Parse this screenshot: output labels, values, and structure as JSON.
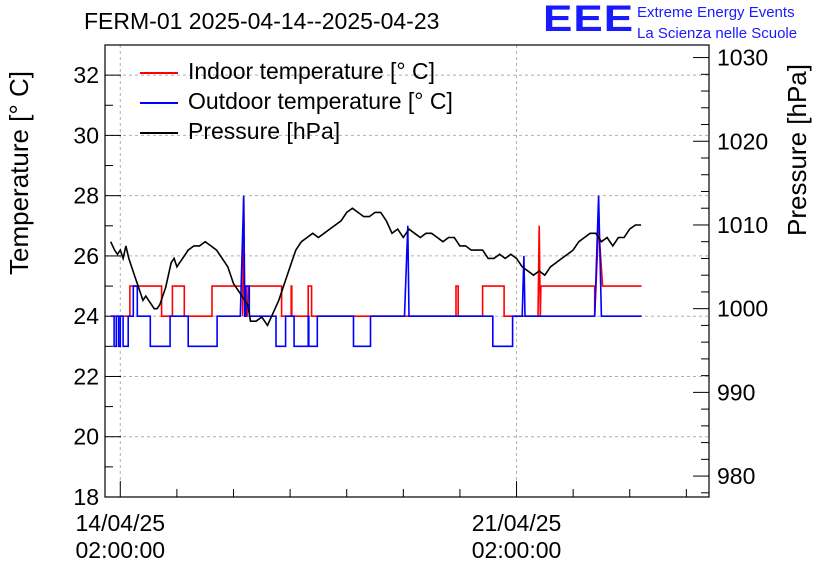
{
  "title": "FERM-01 2025-04-14--2025-04-23",
  "logo_text": "EEE",
  "org_line1": "Extreme Energy Events",
  "org_line2": "La Scienza nelle Scuole",
  "colors": {
    "indoor": "#ff0000",
    "outdoor": "#0000ff",
    "pressure": "#000000",
    "brand": "#1a1aff",
    "grid": "#b0b0b0"
  },
  "chart_data": {
    "type": "line",
    "ylabel": "Temperature [° C]",
    "ylabel_right": "Pressure [hPa]",
    "ylim": [
      18,
      33
    ],
    "ylim_right": [
      977.5,
      1031.5
    ],
    "xlim": [
      -0.27,
      10.4
    ],
    "yticks_left": [
      18,
      20,
      22,
      24,
      26,
      28,
      30,
      32
    ],
    "yticks_right": [
      980,
      990,
      1000,
      1010,
      1020,
      1030
    ],
    "xticks": [
      {
        "x": 0,
        "label1": "14/04/25",
        "label2": "02:00:00"
      },
      {
        "x": 7,
        "label1": "21/04/25",
        "label2": "02:00:00"
      }
    ],
    "grid": true,
    "legend_position": "top-left",
    "series": [
      {
        "name": "Indoor temperature [° C]",
        "axis": "left",
        "x": [
          -0.17,
          0.17,
          0.17,
          0.73,
          0.73,
          0.92,
          0.92,
          1.13,
          1.13,
          1.62,
          1.62,
          2.16,
          2.16,
          2.18,
          2.2,
          2.22,
          2.24,
          2.26,
          2.26,
          2.56,
          2.56,
          2.85,
          2.85,
          3.02,
          3.02,
          3.03,
          3.03,
          3.32,
          3.32,
          3.38,
          3.38,
          5.93,
          5.93,
          5.97,
          5.97,
          6.4,
          6.4,
          6.78,
          6.78,
          6.85,
          6.85,
          7.4,
          7.4,
          7.08,
          7.08,
          7.38,
          7.4,
          7.42,
          7.43,
          8.38,
          8.38,
          8.45,
          8.52,
          9.21
        ],
        "y": [
          24,
          24,
          25,
          25,
          24,
          24,
          25,
          25,
          24,
          24,
          25,
          25,
          24,
          28,
          24,
          24,
          24,
          25,
          25,
          25,
          25,
          25,
          24,
          24,
          25,
          25,
          24,
          24,
          25,
          25,
          24,
          24,
          25,
          25,
          24,
          24,
          25,
          25,
          24,
          24,
          24,
          24,
          24,
          24,
          24,
          24,
          27,
          24,
          25,
          25,
          24,
          27,
          25,
          25
        ]
      },
      {
        "name": "Outdoor temperature [° C]",
        "axis": "left",
        "x": [
          -0.17,
          -0.11,
          -0.11,
          -0.07,
          -0.07,
          -0.03,
          -0.03,
          0.0,
          0.0,
          0.05,
          0.05,
          0.14,
          0.14,
          0.23,
          0.23,
          0.3,
          0.3,
          0.53,
          0.53,
          0.88,
          0.88,
          0.98,
          0.98,
          1.0,
          1.0,
          1.2,
          1.2,
          1.71,
          1.71,
          2.12,
          2.12,
          2.18,
          2.2,
          2.22,
          2.22,
          2.28,
          2.28,
          2.52,
          2.52,
          2.75,
          2.75,
          2.92,
          2.92,
          3.07,
          3.07,
          3.33,
          3.33,
          3.32,
          3.32,
          3.33,
          3.48,
          3.48,
          4.12,
          4.12,
          4.42,
          4.42,
          5.02,
          5.02,
          5.08,
          5.1,
          5.15,
          5.15,
          5.25,
          5.25,
          5.75,
          5.75,
          6.58,
          6.58,
          6.93,
          6.93,
          7.1,
          7.1,
          7.13,
          7.15,
          7.18,
          7.18,
          7.67,
          7.67,
          8.08,
          8.08,
          8.38,
          8.38,
          8.45,
          8.5,
          8.52,
          8.52,
          8.58,
          8.58,
          9.2,
          9.21
        ],
        "y": [
          24,
          24,
          23,
          23,
          24,
          24,
          23,
          23,
          24,
          24,
          23,
          23,
          24,
          24,
          25,
          25,
          24,
          24,
          23,
          23,
          24,
          24,
          24,
          24,
          24,
          24,
          23,
          23,
          24,
          24,
          24,
          28,
          24,
          24,
          25,
          25,
          24,
          24,
          24,
          24,
          23,
          23,
          24,
          24,
          23,
          23,
          24,
          24,
          23,
          23,
          23,
          24,
          24,
          23,
          23,
          24,
          24,
          24,
          27,
          24,
          24,
          24,
          24,
          24,
          24,
          24,
          24,
          23,
          23,
          24,
          24,
          24,
          26,
          24,
          24,
          24,
          24,
          24,
          24,
          24,
          24,
          24,
          28,
          24,
          24,
          24,
          24,
          24,
          24,
          24
        ]
      },
      {
        "name": "Pressure [hPa]",
        "axis": "right",
        "x": [
          -0.17,
          -0.1,
          -0.05,
          0.0,
          0.05,
          0.1,
          0.15,
          0.2,
          0.25,
          0.3,
          0.35,
          0.4,
          0.45,
          0.5,
          0.55,
          0.6,
          0.65,
          0.7,
          0.75,
          0.8,
          0.85,
          0.9,
          0.95,
          1.0,
          1.05,
          1.1,
          1.15,
          1.2,
          1.3,
          1.4,
          1.5,
          1.6,
          1.7,
          1.8,
          1.9,
          2.0,
          2.1,
          2.2,
          2.25,
          2.3,
          2.4,
          2.5,
          2.6,
          2.7,
          2.8,
          2.9,
          3.0,
          3.1,
          3.2,
          3.3,
          3.4,
          3.5,
          3.6,
          3.7,
          3.8,
          3.9,
          4.0,
          4.1,
          4.2,
          4.3,
          4.4,
          4.5,
          4.6,
          4.7,
          4.8,
          4.9,
          5.0,
          5.1,
          5.2,
          5.3,
          5.4,
          5.5,
          5.6,
          5.7,
          5.8,
          5.9,
          6.0,
          6.1,
          6.2,
          6.3,
          6.4,
          6.5,
          6.6,
          6.7,
          6.8,
          6.9,
          7.0,
          7.1,
          7.2,
          7.3,
          7.4,
          7.5,
          7.6,
          7.7,
          7.8,
          7.9,
          8.0,
          8.1,
          8.2,
          8.3,
          8.4,
          8.5,
          8.6,
          8.7,
          8.8,
          8.9,
          9.0,
          9.1,
          9.2
        ],
        "y": [
          1008,
          1007,
          1006.5,
          1007,
          1006,
          1007.5,
          1006,
          1005,
          1004,
          1003,
          1002,
          1001,
          1001.5,
          1001,
          1000.5,
          1000,
          1000,
          1000.5,
          1001.5,
          1002.5,
          1004,
          1005.5,
          1006,
          1005,
          1005.5,
          1006,
          1006.5,
          1007,
          1007.5,
          1007.5,
          1008,
          1007.5,
          1007,
          1006,
          1005,
          1003,
          1002,
          1001,
          1000.5,
          998.5,
          998.5,
          999,
          998,
          999.5,
          1001,
          1003,
          1005,
          1007,
          1008,
          1008.5,
          1009,
          1008.5,
          1009,
          1009.5,
          1010,
          1010.5,
          1011.5,
          1012,
          1011.5,
          1011,
          1011,
          1011.5,
          1011.5,
          1010.5,
          1009,
          1009.5,
          1008.5,
          1009.5,
          1009,
          1008.5,
          1009,
          1009,
          1008.5,
          1008,
          1008.5,
          1008.5,
          1007.5,
          1007.5,
          1007,
          1007,
          1007,
          1006,
          1006,
          1006.5,
          1006,
          1006.5,
          1006,
          1005,
          1004.5,
          1004,
          1004.5,
          1004,
          1005,
          1005.5,
          1006,
          1006.5,
          1007,
          1008,
          1008.5,
          1009,
          1009,
          1008,
          1008.5,
          1007.5,
          1008.5,
          1008.5,
          1009.5,
          1010,
          1010
        ]
      }
    ]
  }
}
